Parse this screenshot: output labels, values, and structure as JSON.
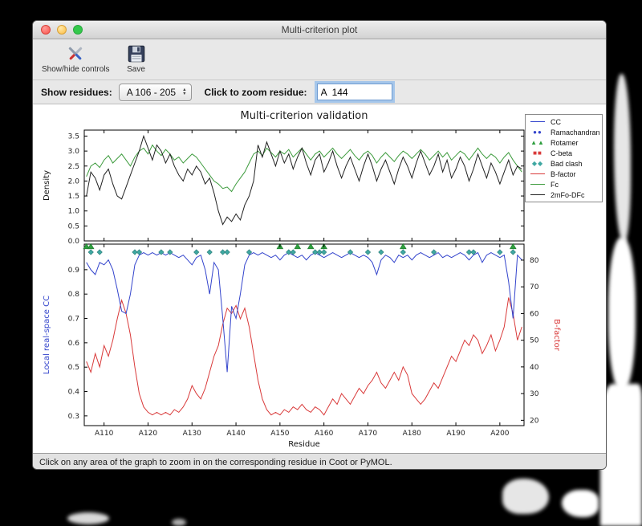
{
  "window": {
    "title": "Multi-criterion plot",
    "toolbar": {
      "show_hide_label": "Show/hide controls",
      "save_label": "Save"
    },
    "controls": {
      "show_residues_label": "Show residues:",
      "range_value": "A 106 - 205",
      "zoom_label": "Click to zoom residue:",
      "zoom_value": "A  144"
    },
    "status_text": "Click on any area of the graph to zoom in on the corresponding residue in Coot or PyMOL."
  },
  "legend": {
    "items": [
      {
        "label": "CC",
        "type": "line",
        "color": "#3344cc"
      },
      {
        "label": "Ramachandran",
        "type": "circles",
        "color": "#3344cc"
      },
      {
        "label": "Rotamer",
        "type": "triangles",
        "color": "#2e9e3e"
      },
      {
        "label": "C-beta",
        "type": "squares",
        "color": "#d93a3a"
      },
      {
        "label": "Bad clash",
        "type": "diamonds",
        "color": "#3fa8a2"
      },
      {
        "label": "B-factor",
        "type": "line",
        "color": "#d93a3a"
      },
      {
        "label": "Fc",
        "type": "line",
        "color": "#3d9b3d"
      },
      {
        "label": "2mFo-DFc",
        "type": "line",
        "color": "#222222"
      }
    ]
  },
  "chart_data": {
    "type": "line",
    "title": "Multi-criterion validation",
    "x_start": 106,
    "x_end": 205,
    "xlabel": "Residue",
    "x_ticks": {
      "values": [
        110,
        120,
        130,
        140,
        150,
        160,
        170,
        180,
        190,
        200
      ],
      "labels": [
        "A110",
        "A120",
        "A130",
        "A140",
        "A150",
        "A160",
        "A170",
        "A180",
        "A190",
        "A200"
      ]
    },
    "top": {
      "ylabel": "Density",
      "ylim": [
        0,
        3.7
      ],
      "yticks": [
        0.0,
        0.5,
        1.0,
        1.5,
        2.0,
        2.5,
        3.0,
        3.5
      ],
      "series": [
        {
          "name": "Fc",
          "color": "#3d9b3d",
          "values": [
            2.15,
            2.5,
            2.6,
            2.45,
            2.7,
            2.85,
            2.6,
            2.75,
            2.9,
            2.7,
            2.5,
            2.8,
            3.0,
            3.1,
            2.9,
            3.2,
            3.0,
            2.85,
            3.05,
            2.9,
            2.7,
            2.8,
            2.6,
            2.75,
            2.9,
            2.8,
            2.6,
            2.4,
            2.2,
            2.0,
            1.9,
            1.75,
            1.8,
            1.65,
            1.9,
            2.1,
            2.3,
            2.6,
            2.9,
            3.0,
            2.85,
            3.1,
            2.95,
            2.8,
            3.0,
            2.9,
            3.05,
            2.8,
            2.95,
            3.1,
            2.9,
            2.7,
            2.9,
            3.0,
            2.8,
            2.95,
            3.1,
            2.9,
            2.75,
            2.9,
            3.05,
            2.85,
            2.7,
            2.9,
            3.0,
            2.85,
            2.6,
            2.8,
            2.95,
            2.8,
            2.65,
            2.85,
            3.0,
            2.9,
            2.75,
            2.9,
            3.05,
            2.9,
            2.7,
            2.85,
            3.0,
            2.8,
            2.95,
            2.7,
            2.85,
            3.0,
            2.9,
            2.7,
            2.9,
            3.1,
            2.9,
            2.75,
            2.9,
            2.8,
            2.6,
            2.8,
            2.95,
            2.7,
            2.5,
            2.3
          ]
        },
        {
          "name": "2mFo-DFc",
          "color": "#222222",
          "values": [
            1.5,
            2.3,
            2.1,
            1.7,
            2.2,
            2.4,
            1.9,
            1.5,
            1.4,
            1.8,
            2.2,
            2.6,
            3.0,
            3.5,
            3.1,
            2.7,
            3.2,
            3.0,
            2.6,
            2.9,
            2.5,
            2.2,
            2.0,
            2.4,
            2.2,
            2.5,
            2.3,
            1.9,
            2.1,
            1.6,
            1.0,
            0.55,
            0.8,
            0.65,
            0.9,
            0.7,
            1.2,
            1.5,
            2.0,
            3.2,
            2.8,
            3.3,
            2.9,
            2.5,
            3.0,
            2.6,
            2.9,
            2.4,
            2.8,
            3.1,
            2.6,
            2.2,
            2.7,
            2.9,
            2.3,
            2.6,
            3.0,
            2.5,
            2.1,
            2.5,
            2.8,
            2.4,
            2.0,
            2.5,
            2.9,
            2.5,
            2.0,
            2.4,
            2.7,
            2.3,
            1.9,
            2.4,
            2.8,
            2.5,
            2.1,
            2.6,
            3.0,
            2.6,
            2.2,
            2.5,
            2.9,
            2.3,
            2.7,
            2.1,
            2.4,
            2.8,
            2.5,
            2.0,
            2.4,
            2.9,
            2.5,
            2.1,
            2.6,
            2.3,
            1.9,
            2.3,
            2.7,
            2.2,
            2.5,
            2.4
          ]
        }
      ]
    },
    "bottom": {
      "ylabel_left": "Local real-space CC",
      "ylabel_left_color": "#3344cc",
      "ylim_left": [
        0.26,
        1.005
      ],
      "yticks_left": [
        0.3,
        0.4,
        0.5,
        0.6,
        0.7,
        0.8,
        0.9
      ],
      "ylabel_right": "B-factor",
      "ylabel_right_color": "#d93a3a",
      "ylim_right": [
        18,
        86
      ],
      "yticks_right": [
        20,
        30,
        40,
        50,
        60,
        70,
        80
      ],
      "cc": {
        "name": "CC",
        "color": "#3344cc",
        "values": [
          0.93,
          0.9,
          0.88,
          0.93,
          0.92,
          0.94,
          0.9,
          0.82,
          0.73,
          0.72,
          0.8,
          0.92,
          0.96,
          0.97,
          0.96,
          0.97,
          0.96,
          0.97,
          0.96,
          0.97,
          0.96,
          0.95,
          0.96,
          0.94,
          0.92,
          0.95,
          0.96,
          0.9,
          0.8,
          0.93,
          0.9,
          0.7,
          0.48,
          0.75,
          0.7,
          0.8,
          0.92,
          0.96,
          0.97,
          0.96,
          0.97,
          0.96,
          0.95,
          0.96,
          0.94,
          0.96,
          0.97,
          0.96,
          0.95,
          0.96,
          0.94,
          0.96,
          0.97,
          0.96,
          0.95,
          0.96,
          0.97,
          0.96,
          0.95,
          0.96,
          0.97,
          0.96,
          0.95,
          0.96,
          0.95,
          0.93,
          0.88,
          0.94,
          0.96,
          0.95,
          0.93,
          0.96,
          0.95,
          0.96,
          0.94,
          0.96,
          0.97,
          0.96,
          0.95,
          0.96,
          0.97,
          0.95,
          0.96,
          0.95,
          0.96,
          0.97,
          0.96,
          0.94,
          0.96,
          0.97,
          0.93,
          0.96,
          0.97,
          0.96,
          0.95,
          0.96,
          0.85,
          0.7,
          0.96,
          0.94
        ]
      },
      "bfactor": {
        "name": "B-factor",
        "color": "#d93a3a",
        "values": [
          42,
          38,
          45,
          40,
          48,
          44,
          50,
          58,
          65,
          60,
          52,
          40,
          30,
          25,
          23,
          22,
          23,
          22,
          23,
          22,
          24,
          23,
          25,
          28,
          33,
          30,
          28,
          32,
          38,
          44,
          48,
          56,
          62,
          60,
          63,
          58,
          62,
          55,
          45,
          35,
          28,
          24,
          22,
          23,
          22,
          24,
          23,
          25,
          24,
          26,
          24,
          23,
          25,
          24,
          22,
          25,
          28,
          26,
          30,
          28,
          26,
          29,
          32,
          30,
          33,
          35,
          38,
          34,
          32,
          35,
          38,
          35,
          40,
          37,
          30,
          28,
          26,
          28,
          31,
          34,
          32,
          36,
          40,
          44,
          42,
          46,
          50,
          48,
          52,
          50,
          45,
          48,
          52,
          46,
          50,
          55,
          66,
          60,
          50,
          55
        ]
      },
      "markers": {
        "bad_clash": {
          "color": "#3fa8a2",
          "y": 0.972,
          "residues": [
            107,
            109,
            117,
            118,
            123,
            125,
            131,
            134,
            137,
            138,
            143,
            152,
            153,
            158,
            159,
            160,
            166,
            170,
            173,
            178,
            185,
            193,
            194,
            200,
            203
          ]
        },
        "rotamer": {
          "color": "#2e9e3e",
          "y": 1.0,
          "residues": [
            106,
            107,
            150,
            154,
            157,
            160,
            178,
            203
          ]
        }
      }
    }
  }
}
